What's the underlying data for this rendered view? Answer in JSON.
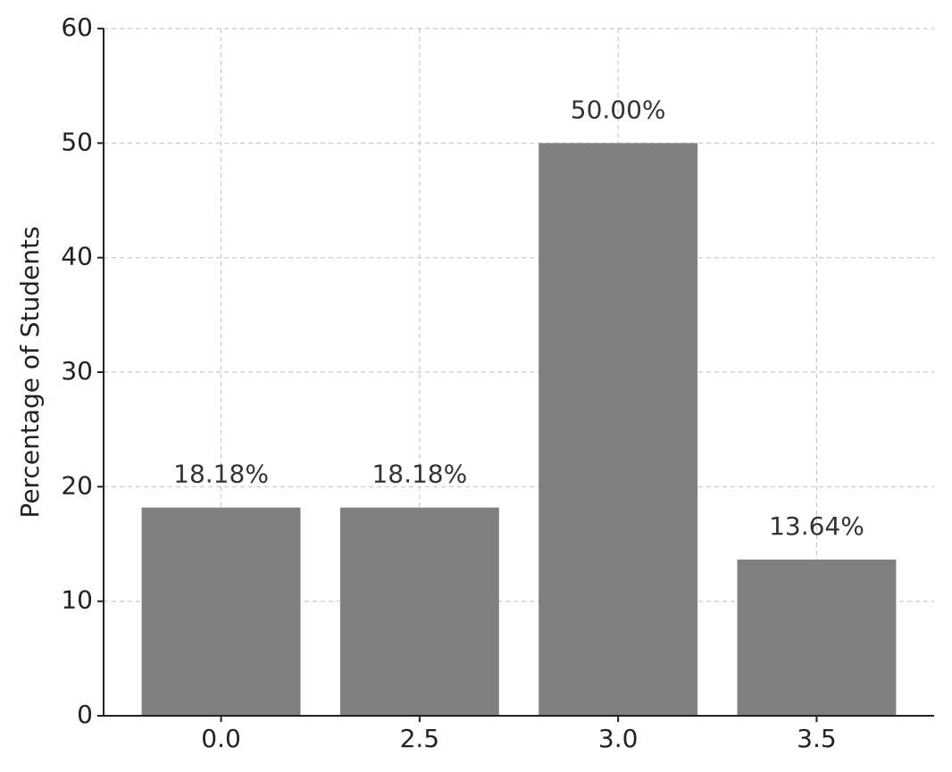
{
  "chart_data": {
    "type": "bar",
    "y_label": "Percentage of Students",
    "categories": [
      "0.0",
      "2.5",
      "3.0",
      "3.5"
    ],
    "values": [
      18.18,
      18.18,
      50.0,
      13.64
    ],
    "value_labels": [
      "18.18%",
      "18.18%",
      "50.00%",
      "13.64%"
    ],
    "color": "#808080",
    "ylim": [
      0,
      60
    ],
    "yticks": [
      0,
      10,
      20,
      30,
      40,
      50,
      60
    ],
    "grid": true
  }
}
